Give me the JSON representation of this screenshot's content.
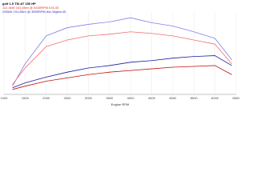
{
  "chart_data": {
    "type": "line",
    "title": "golf 1.5 TSI AT 150 HP",
    "legend_lines": [
      {
        "text": "112,4kW 161,6Nm @ 5430RPM 016.45",
        "color": "#e03030"
      },
      {
        "text": "255kW 191,8Nm @ 3950RPM dsn Digital.45",
        "color": "#3030c0"
      }
    ],
    "x_label": "Engine RPM",
    "x": [
      1200,
      1500,
      2000,
      2500,
      3000,
      3500,
      4000,
      4500,
      5000,
      5500,
      6000,
      6400
    ],
    "series": [
      {
        "color": "#8080e8",
        "values": [
          10,
          37,
          71,
          81,
          85,
          88,
          93,
          87,
          83,
          76,
          68,
          42
        ]
      },
      {
        "color": "#f07070",
        "values": [
          12,
          32,
          58,
          66,
          71,
          73,
          76,
          74,
          71,
          66,
          61,
          37
        ]
      },
      {
        "color": "#1a1aa0",
        "values": [
          8,
          14,
          21,
          27,
          32,
          35,
          39,
          41,
          44,
          46,
          47,
          35
        ]
      },
      {
        "color": "#c01010",
        "values": [
          6,
          10,
          16,
          20,
          24,
          27,
          29,
          31,
          33,
          34,
          35,
          24
        ]
      }
    ],
    "xlim": [
      1000,
      6500
    ],
    "xticks": [
      1000,
      1500,
      2000,
      2500,
      3000,
      3500,
      4000,
      4500,
      5000,
      5500,
      6000,
      6500
    ],
    "ylim": [
      0,
      100
    ],
    "grid": true
  }
}
